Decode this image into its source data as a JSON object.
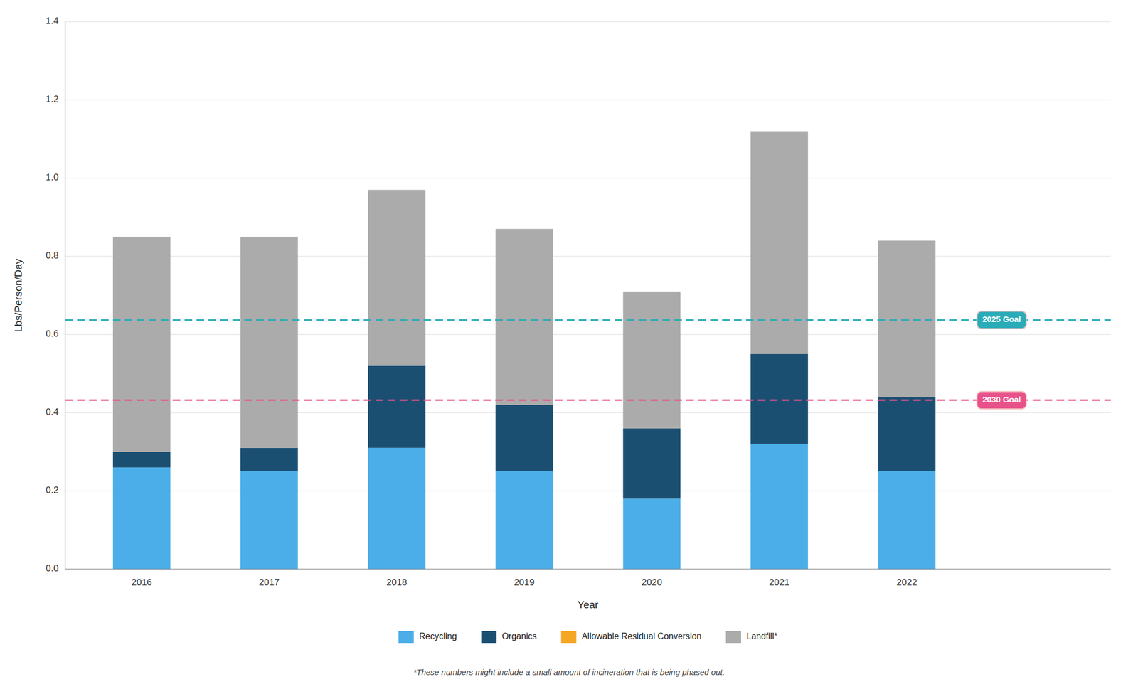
{
  "chart_data": {
    "type": "bar",
    "stacked": true,
    "xlabel": "Year",
    "ylabel": "Lbs/Person/Day",
    "categories": [
      "2016",
      "2017",
      "2018",
      "2019",
      "2020",
      "2021",
      "2022"
    ],
    "series": [
      {
        "name": "Recycling",
        "color": "#4BAEE8",
        "values": [
          0.26,
          0.25,
          0.31,
          0.25,
          0.18,
          0.32,
          0.25
        ]
      },
      {
        "name": "Organics",
        "color": "#1B4F72",
        "values": [
          0.04,
          0.06,
          0.21,
          0.17,
          0.18,
          0.23,
          0.19
        ]
      },
      {
        "name": "Allowable Residual Conversion",
        "color": "#F5A623",
        "values": [
          0.0,
          0.0,
          0.0,
          0.0,
          0.0,
          0.0,
          0.0
        ]
      },
      {
        "name": "Landfill*",
        "color": "#ABABAB",
        "values": [
          0.55,
          0.54,
          0.45,
          0.45,
          0.35,
          0.57,
          0.4
        ]
      }
    ],
    "annotations": [
      {
        "text": "2025 Goal",
        "value": 0.637,
        "color": "#2AACB8"
      },
      {
        "text": "2030 Goal",
        "value": 0.432,
        "color": "#E8528A"
      }
    ],
    "footnote": "*These numbers might include a small amount of incineration that is being phased out.",
    "ylim": [
      0,
      1.4
    ],
    "yticks": [
      {
        "value": 0,
        "label": "0.0"
      },
      0.2,
      0.4,
      0.6,
      0.8,
      {
        "value": 1,
        "label": "1.0"
      },
      1.2,
      1.4
    ],
    "grid": true,
    "legend": "bottom"
  }
}
